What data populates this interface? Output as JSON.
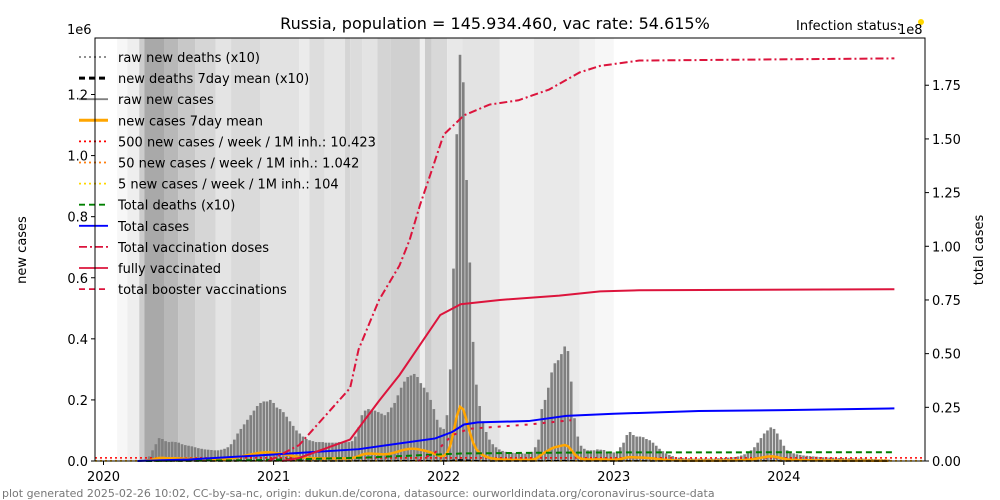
{
  "chart_data": {
    "type": "bar+line",
    "title": "Russia, population = 145.934.460, vac rate: 54.615%",
    "status_label": "Infection status:",
    "status_color": "#ffd700",
    "left_axis": {
      "label": "new cases",
      "multiplier": "1e6",
      "ylim": [
        0,
        1.385
      ],
      "ticks": [
        "0.0",
        "0.2",
        "0.4",
        "0.6",
        "0.8",
        "1.0",
        "1.2"
      ],
      "tick_values": [
        0,
        0.2,
        0.4,
        0.6,
        0.8,
        1.0,
        1.2
      ]
    },
    "right_axis": {
      "label": "total cases",
      "multiplier": "1e8",
      "ylim": [
        0,
        1.97
      ],
      "ticks": [
        "0.00",
        "0.25",
        "0.50",
        "0.75",
        "1.00",
        "1.25",
        "1.50",
        "1.75"
      ],
      "tick_values": [
        0,
        0.25,
        0.5,
        0.75,
        1.0,
        1.25,
        1.5,
        1.75
      ]
    },
    "x_axis": {
      "xlim": [
        2019.95,
        2024.83
      ],
      "ticks": [
        "2020",
        "2021",
        "2022",
        "2023",
        "2024"
      ],
      "tick_values": [
        2020,
        2021,
        2022,
        2023,
        2024
      ]
    },
    "footer": "plot generated 2025-02-26 10:02, CC-by-sa-nc, origin: dukun.de/corona, datasource: ourworldindata.org/coronavirus-source-data",
    "legend": [
      {
        "label": "raw new deaths (x10)",
        "color": "#808080",
        "style": "dotted"
      },
      {
        "label": "new deaths 7day mean (x10)",
        "color": "#000000",
        "style": "dashed-thick"
      },
      {
        "label": "raw new cases",
        "color": "#808080",
        "style": "solid"
      },
      {
        "label": "new cases 7day mean",
        "color": "#ffa500",
        "style": "solid-thick"
      },
      {
        "label": "500 new cases / week / 1M inh.: 10.423",
        "color": "#ff0000",
        "style": "dotted"
      },
      {
        "label": "50 new cases / week / 1M inh.: 1.042",
        "color": "#ff7f0e",
        "style": "dotted"
      },
      {
        "label": "5 new cases / week / 1M inh.: 104",
        "color": "#ffd700",
        "style": "dotted"
      },
      {
        "label": "Total deaths (x10)",
        "color": "#008000",
        "style": "dashed"
      },
      {
        "label": "Total cases",
        "color": "#0000ff",
        "style": "solid"
      },
      {
        "label": "Total vaccination doses",
        "color": "#dc143c",
        "style": "dashdot"
      },
      {
        "label": "fully vaccinated",
        "color": "#dc143c",
        "style": "solid"
      },
      {
        "label": "total booster vaccinations",
        "color": "#dc143c",
        "style": "dashed"
      }
    ],
    "thresholds_daily": [
      10423,
      1042,
      104
    ],
    "weekly_new_cases": {
      "start_year": 2020.25,
      "unit": "thousand cases per week",
      "values": [
        5,
        15,
        35,
        55,
        75,
        72,
        65,
        62,
        63,
        62,
        60,
        55,
        52,
        50,
        48,
        45,
        42,
        40,
        38,
        37,
        36,
        35,
        35,
        37,
        40,
        45,
        55,
        70,
        90,
        105,
        120,
        135,
        150,
        165,
        180,
        190,
        195,
        195,
        200,
        190,
        175,
        170,
        160,
        145,
        130,
        115,
        100,
        90,
        80,
        72,
        68,
        65,
        62,
        62,
        62,
        60,
        60,
        60,
        60,
        62,
        60,
        62,
        62,
        65,
        80,
        110,
        150,
        165,
        170,
        168,
        165,
        160,
        155,
        150,
        160,
        175,
        190,
        215,
        240,
        260,
        275,
        280,
        285,
        275,
        255,
        240,
        225,
        200,
        170,
        135,
        110,
        105,
        150,
        300,
        630,
        1070,
        1330,
        1240,
        920,
        650,
        390,
        250,
        180,
        130,
        95,
        70,
        55,
        45,
        38,
        33,
        30,
        28,
        27,
        26,
        25,
        25,
        24,
        25,
        30,
        45,
        70,
        170,
        200,
        240,
        290,
        320,
        330,
        350,
        375,
        360,
        260,
        140,
        80,
        50,
        40,
        35,
        35,
        35,
        38,
        37,
        36,
        30,
        28,
        28,
        30,
        45,
        60,
        85,
        95,
        85,
        80,
        80,
        78,
        72,
        68,
        60,
        50,
        40,
        32,
        25,
        20,
        16,
        12,
        11,
        10,
        9,
        9,
        8,
        8,
        8,
        8,
        8,
        8,
        8,
        8,
        9,
        10,
        10,
        11,
        12,
        13,
        15,
        18,
        22,
        28,
        35,
        45,
        60,
        75,
        90,
        100,
        110,
        105,
        90,
        70,
        50,
        35,
        28,
        25,
        22,
        20,
        18,
        17,
        16,
        15,
        14,
        13,
        12,
        12,
        11,
        11,
        10,
        10,
        10,
        9,
        9,
        9,
        8,
        8,
        8,
        8,
        7,
        7,
        7,
        6,
        6,
        6,
        5
      ]
    },
    "total_cases_1e8": [
      [
        2020.2,
        0
      ],
      [
        2020.5,
        0.007
      ],
      [
        2021.0,
        0.03
      ],
      [
        2021.5,
        0.055
      ],
      [
        2021.95,
        0.105
      ],
      [
        2022.05,
        0.135
      ],
      [
        2022.12,
        0.17
      ],
      [
        2022.2,
        0.18
      ],
      [
        2022.5,
        0.186
      ],
      [
        2022.72,
        0.21
      ],
      [
        2023.0,
        0.22
      ],
      [
        2023.5,
        0.233
      ],
      [
        2024.0,
        0.237
      ],
      [
        2024.65,
        0.245
      ]
    ],
    "total_deaths_x10_1e8": [
      [
        2020.25,
        0
      ],
      [
        2020.9,
        0.004
      ],
      [
        2021.0,
        0.006
      ],
      [
        2021.5,
        0.015
      ],
      [
        2021.9,
        0.028
      ],
      [
        2022.1,
        0.035
      ],
      [
        2022.5,
        0.038
      ],
      [
        2023.0,
        0.04
      ],
      [
        2024.65,
        0.041
      ]
    ],
    "total_vaccination_doses_1e8": [
      [
        2020.97,
        0
      ],
      [
        2021.15,
        0.074
      ],
      [
        2021.45,
        0.34
      ],
      [
        2021.5,
        0.52
      ],
      [
        2021.62,
        0.75
      ],
      [
        2021.74,
        0.91
      ],
      [
        2021.8,
        1.03
      ],
      [
        2021.86,
        1.19
      ],
      [
        2021.92,
        1.33
      ],
      [
        2022.0,
        1.52
      ],
      [
        2022.12,
        1.61
      ],
      [
        2022.27,
        1.66
      ],
      [
        2022.44,
        1.68
      ],
      [
        2022.62,
        1.73
      ],
      [
        2022.8,
        1.81
      ],
      [
        2022.92,
        1.84
      ],
      [
        2023.15,
        1.865
      ],
      [
        2024.65,
        1.875
      ]
    ],
    "fully_vaccinated_1e8": [
      [
        2021.05,
        0
      ],
      [
        2021.15,
        0.014
      ],
      [
        2021.45,
        0.1
      ],
      [
        2021.62,
        0.28
      ],
      [
        2021.74,
        0.4
      ],
      [
        2021.86,
        0.54
      ],
      [
        2021.98,
        0.68
      ],
      [
        2022.1,
        0.73
      ],
      [
        2022.33,
        0.75
      ],
      [
        2022.68,
        0.77
      ],
      [
        2022.92,
        0.79
      ],
      [
        2023.15,
        0.795
      ],
      [
        2024.65,
        0.8
      ]
    ],
    "booster_vaccinations_1e8": [
      [
        2021.85,
        0
      ],
      [
        2021.95,
        0.04
      ],
      [
        2022.05,
        0.12
      ],
      [
        2022.15,
        0.15
      ],
      [
        2022.5,
        0.17
      ],
      [
        2022.75,
        0.19
      ]
    ],
    "infection_status_bands": [
      [
        2019.95,
        2020.08,
        "#ffffff"
      ],
      [
        2020.08,
        2020.14,
        "#f7f7f7"
      ],
      [
        2020.14,
        2020.21,
        "#eeeeee"
      ],
      [
        2020.21,
        2020.24,
        "#cccccc"
      ],
      [
        2020.24,
        2020.36,
        "#a9a9a9"
      ],
      [
        2020.36,
        2020.44,
        "#b8b8b8"
      ],
      [
        2020.44,
        2020.54,
        "#c8c8c8"
      ],
      [
        2020.54,
        2020.66,
        "#d6d6d6"
      ],
      [
        2020.66,
        2020.75,
        "#e4e4e4"
      ],
      [
        2020.75,
        2020.92,
        "#dadada"
      ],
      [
        2020.92,
        2021.15,
        "#e2e2e2"
      ],
      [
        2021.15,
        2021.21,
        "#ebebeb"
      ],
      [
        2021.21,
        2021.3,
        "#dddddd"
      ],
      [
        2021.3,
        2021.42,
        "#e6e6e6"
      ],
      [
        2021.42,
        2021.45,
        "#d5d5d5"
      ],
      [
        2021.45,
        2021.52,
        "#dcdcdc"
      ],
      [
        2021.52,
        2021.61,
        "#e3e3e3"
      ],
      [
        2021.61,
        2021.69,
        "#d4d4d4"
      ],
      [
        2021.69,
        2021.86,
        "#d0d0d0"
      ],
      [
        2021.86,
        2021.89,
        "#eeeeee"
      ],
      [
        2021.89,
        2021.93,
        "#cccccc"
      ],
      [
        2021.93,
        2022.02,
        "#d8d8d8"
      ],
      [
        2022.02,
        2022.11,
        "#e8e8e8"
      ],
      [
        2022.11,
        2022.33,
        "#e3e3e3"
      ],
      [
        2022.33,
        2022.53,
        "#f1f1f1"
      ],
      [
        2022.53,
        2022.8,
        "#e9e9e9"
      ],
      [
        2022.8,
        2022.89,
        "#f1f1f1"
      ],
      [
        2022.89,
        2023.0,
        "#f7f7f7"
      ]
    ]
  }
}
